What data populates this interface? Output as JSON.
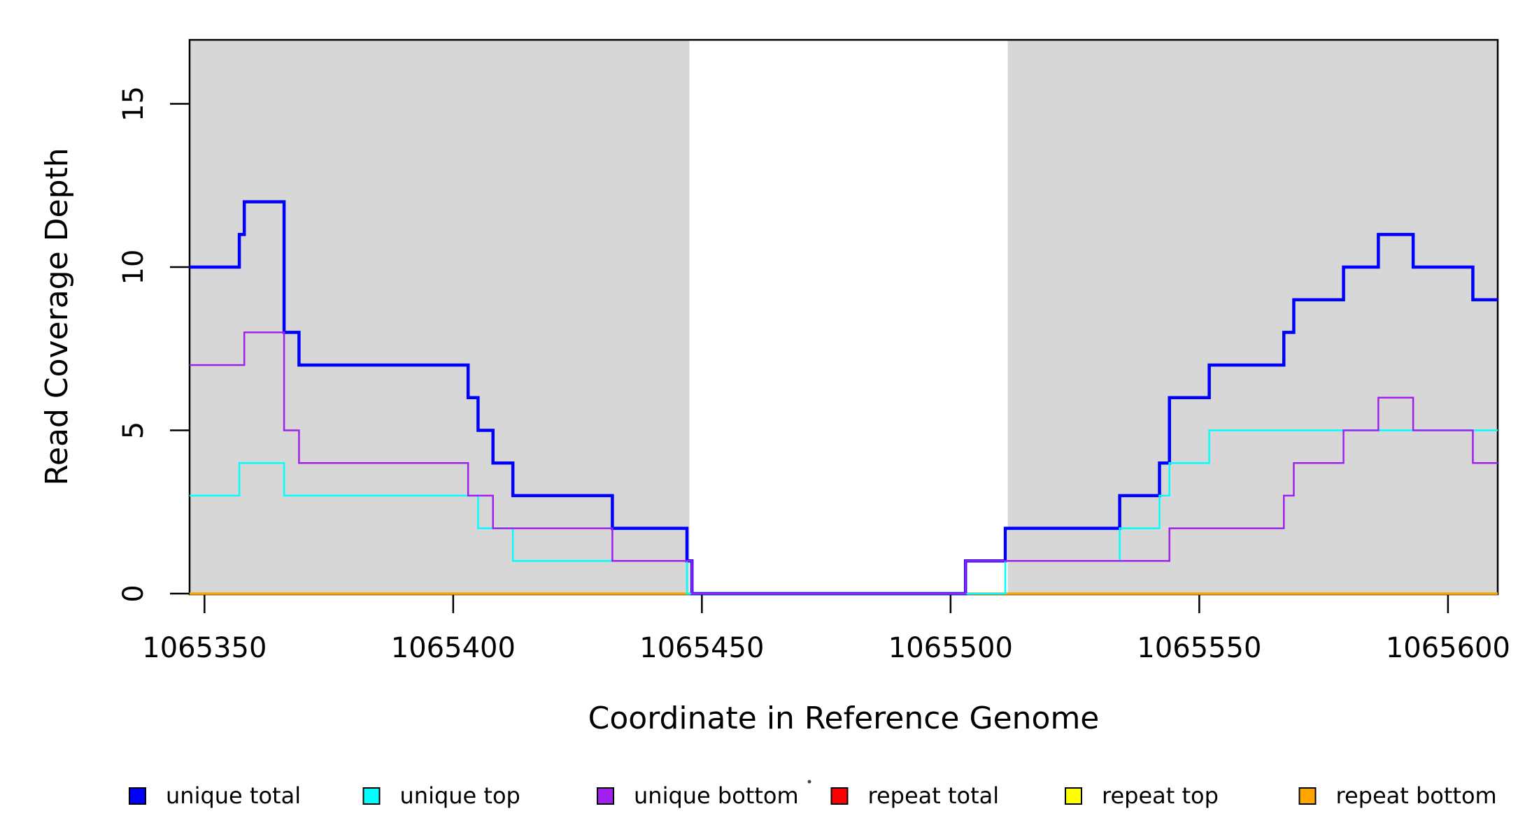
{
  "chart_data": {
    "type": "line",
    "subtype": "step-coverage",
    "title": "",
    "xlabel": "Coordinate in Reference Genome",
    "ylabel": "Read Coverage Depth",
    "xlim": [
      1065347,
      1065610
    ],
    "ylim": [
      0,
      16.96
    ],
    "grid": false,
    "legend_position": "bottom",
    "x_ticks": [
      1065350,
      1065400,
      1065450,
      1065500,
      1065550,
      1065600
    ],
    "x_tick_labels": [
      "1065350",
      "1065400",
      "1065450",
      "1065500",
      "1065550",
      "1065600"
    ],
    "y_ticks": [
      0,
      5,
      10,
      15
    ],
    "y_tick_labels": [
      "0",
      "5",
      "10",
      "15"
    ],
    "shaded_regions": [
      {
        "from": 1065347,
        "to": 1065447.5,
        "color": "#d7d7d7"
      },
      {
        "from": 1065511.5,
        "to": 1065610,
        "color": "#d7d7d7"
      }
    ],
    "series": [
      {
        "name": "repeat total",
        "color": "#FF0000",
        "width": 3,
        "start": 0,
        "changes": []
      },
      {
        "name": "repeat top",
        "color": "#FFFF00",
        "width": 3,
        "start": 0,
        "changes": []
      },
      {
        "name": "repeat bottom",
        "color": "#FFA500",
        "width": 3.5,
        "start": 0,
        "changes": []
      },
      {
        "name": "unique total",
        "color": "#0000FF",
        "width": 4.5,
        "start": 10,
        "changes": [
          [
            1065357,
            11
          ],
          [
            1065358,
            12
          ],
          [
            1065366,
            8
          ],
          [
            1065369,
            7
          ],
          [
            1065403,
            6
          ],
          [
            1065405,
            5
          ],
          [
            1065408,
            4
          ],
          [
            1065412,
            3
          ],
          [
            1065432,
            2
          ],
          [
            1065447,
            1
          ],
          [
            1065448,
            0
          ],
          [
            1065503,
            1
          ],
          [
            1065511,
            2
          ],
          [
            1065534,
            3
          ],
          [
            1065542,
            4
          ],
          [
            1065544,
            6
          ],
          [
            1065552,
            7
          ],
          [
            1065567,
            8
          ],
          [
            1065569,
            9
          ],
          [
            1065579,
            10
          ],
          [
            1065586,
            11
          ],
          [
            1065593,
            10
          ],
          [
            1065605,
            9
          ]
        ]
      },
      {
        "name": "unique top",
        "color": "#00FFFF",
        "width": 2.5,
        "start": 3,
        "changes": [
          [
            1065357,
            4
          ],
          [
            1065366,
            3
          ],
          [
            1065405,
            2
          ],
          [
            1065412,
            1
          ],
          [
            1065447,
            0
          ],
          [
            1065511,
            1
          ],
          [
            1065534,
            2
          ],
          [
            1065542,
            3
          ],
          [
            1065544,
            4
          ],
          [
            1065552,
            5
          ]
        ]
      },
      {
        "name": "unique bottom",
        "color": "#A020F0",
        "width": 2.5,
        "start": 7,
        "changes": [
          [
            1065358,
            8
          ],
          [
            1065366,
            5
          ],
          [
            1065369,
            4
          ],
          [
            1065403,
            3
          ],
          [
            1065408,
            2
          ],
          [
            1065432,
            1
          ],
          [
            1065448,
            0
          ],
          [
            1065503,
            1
          ],
          [
            1065544,
            2
          ],
          [
            1065567,
            3
          ],
          [
            1065569,
            4
          ],
          [
            1065579,
            5
          ],
          [
            1065586,
            6
          ],
          [
            1065593,
            5
          ],
          [
            1065605,
            4
          ]
        ]
      }
    ],
    "legend": [
      {
        "label": "unique total",
        "color": "#0000FF"
      },
      {
        "label": "unique top",
        "color": "#00FFFF"
      },
      {
        "label": "unique bottom",
        "color": "#A020F0"
      },
      {
        "label": "repeat total",
        "color": "#FF0000"
      },
      {
        "label": "repeat top",
        "color": "#FFFF00"
      },
      {
        "label": "repeat bottom",
        "color": "#FFA500"
      }
    ]
  }
}
